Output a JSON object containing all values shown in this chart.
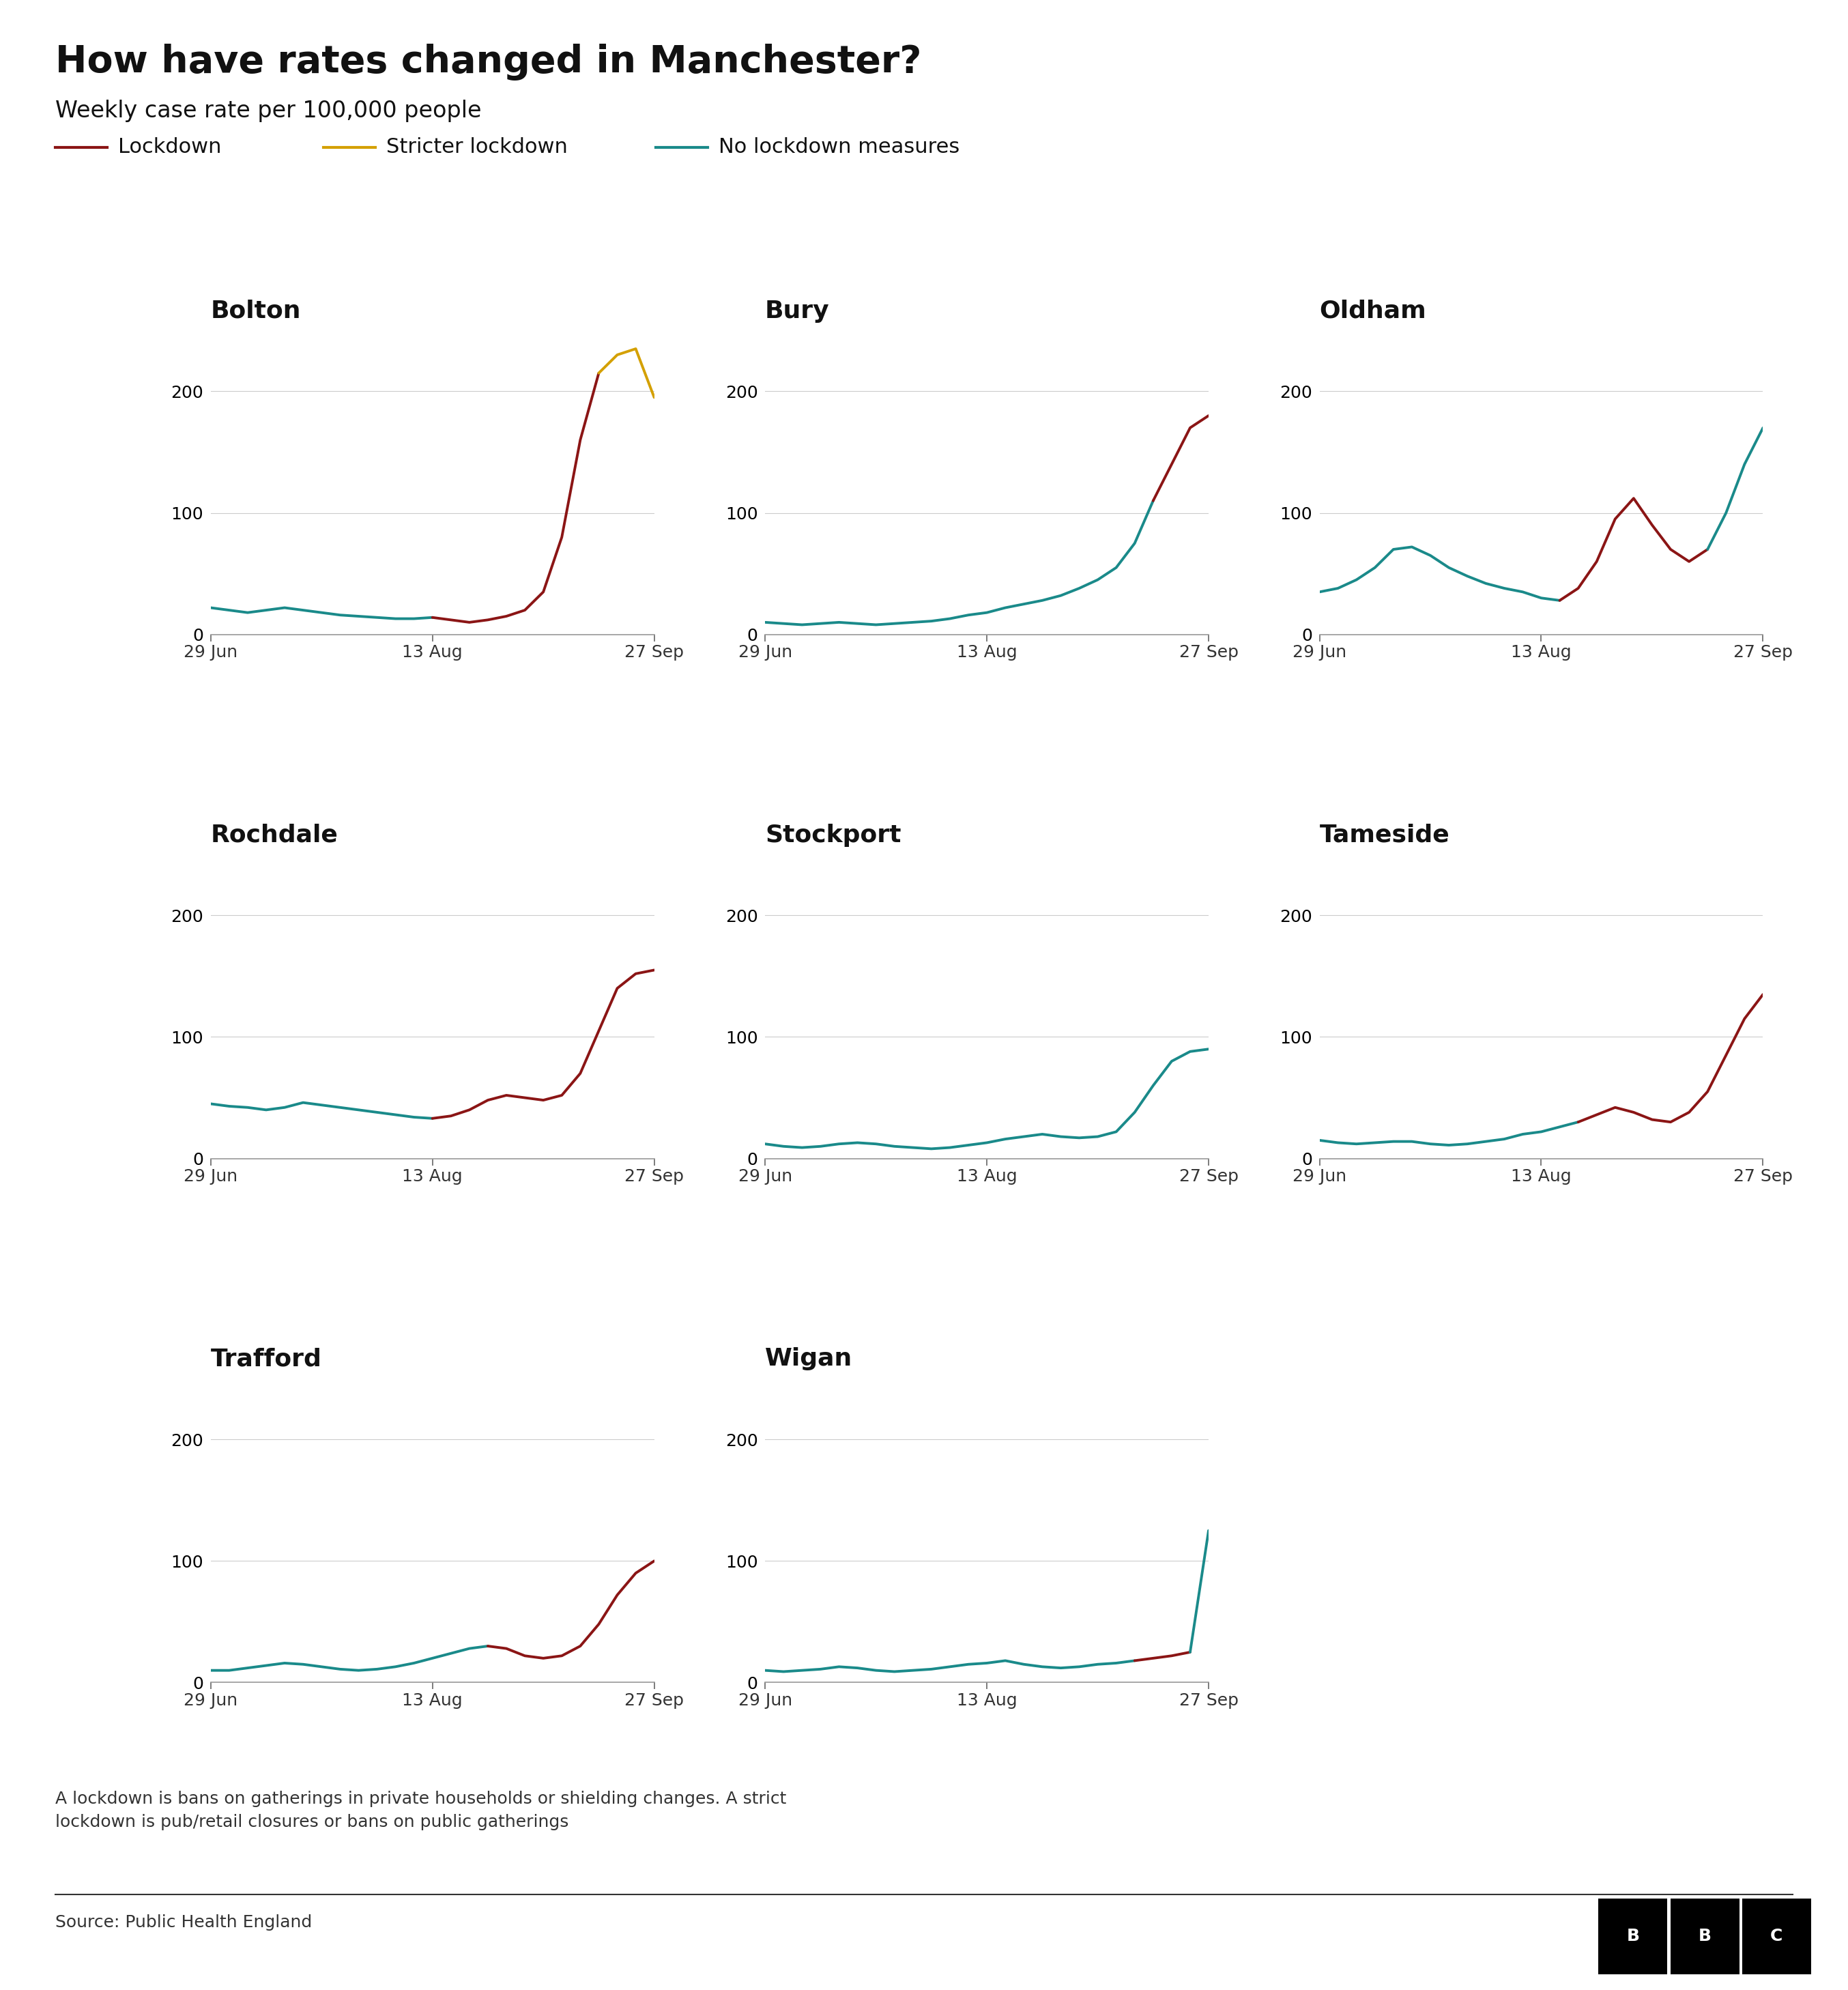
{
  "title": "How have rates changed in Manchester?",
  "subtitle": "Weekly case rate per 100,000 people",
  "footnote": "A lockdown is bans on gatherings in private households or shielding changes. A strict\nlockdown is pub/retail closures or bans on public gatherings",
  "source": "Source: Public Health England",
  "legend": [
    {
      "label": "Lockdown",
      "color": "#8B1515"
    },
    {
      "label": "Stricter lockdown",
      "color": "#D4A000"
    },
    {
      "label": "No lockdown measures",
      "color": "#1A8A8A"
    }
  ],
  "subplots": [
    {
      "title": "Bolton",
      "ylim": [
        0,
        250
      ],
      "yticks": [
        0,
        100,
        200
      ],
      "segments": [
        {
          "color": "#1A8A8A",
          "x": [
            0,
            1,
            2,
            3,
            4,
            5,
            6,
            7,
            8,
            9,
            10,
            11,
            12
          ],
          "y": [
            22,
            20,
            18,
            20,
            22,
            20,
            18,
            16,
            15,
            14,
            13,
            13,
            14
          ]
        },
        {
          "color": "#8B1515",
          "x": [
            12,
            13,
            14,
            15,
            16,
            17,
            18,
            19,
            20,
            21
          ],
          "y": [
            14,
            12,
            10,
            12,
            15,
            20,
            35,
            80,
            160,
            215
          ]
        },
        {
          "color": "#D4A000",
          "x": [
            21,
            22,
            23,
            24
          ],
          "y": [
            215,
            230,
            235,
            195
          ]
        }
      ]
    },
    {
      "title": "Bury",
      "ylim": [
        0,
        250
      ],
      "yticks": [
        0,
        100,
        200
      ],
      "segments": [
        {
          "color": "#1A8A8A",
          "x": [
            0,
            1,
            2,
            3,
            4,
            5,
            6,
            7,
            8,
            9,
            10,
            11,
            12,
            13,
            14,
            15,
            16,
            17,
            18,
            19,
            20,
            21
          ],
          "y": [
            10,
            9,
            8,
            9,
            10,
            9,
            8,
            9,
            10,
            11,
            13,
            16,
            18,
            22,
            25,
            28,
            32,
            38,
            45,
            55,
            75,
            110
          ]
        },
        {
          "color": "#8B1515",
          "x": [
            21,
            22,
            23,
            24
          ],
          "y": [
            110,
            140,
            170,
            180
          ]
        }
      ]
    },
    {
      "title": "Oldham",
      "ylim": [
        0,
        250
      ],
      "yticks": [
        0,
        100,
        200
      ],
      "segments": [
        {
          "color": "#1A8A8A",
          "x": [
            0,
            1,
            2,
            3,
            4,
            5,
            6,
            7,
            8,
            9,
            10,
            11,
            12,
            13
          ],
          "y": [
            35,
            38,
            45,
            55,
            70,
            72,
            65,
            55,
            48,
            42,
            38,
            35,
            30,
            28
          ]
        },
        {
          "color": "#8B1515",
          "x": [
            13,
            14,
            15,
            16,
            17,
            18,
            19,
            20,
            21
          ],
          "y": [
            28,
            38,
            60,
            95,
            112,
            90,
            70,
            60,
            70
          ]
        },
        {
          "color": "#1A8A8A",
          "x": [
            21,
            22,
            23,
            24
          ],
          "y": [
            70,
            100,
            140,
            170
          ]
        }
      ]
    },
    {
      "title": "Rochdale",
      "ylim": [
        0,
        250
      ],
      "yticks": [
        0,
        100,
        200
      ],
      "segments": [
        {
          "color": "#1A8A8A",
          "x": [
            0,
            1,
            2,
            3,
            4,
            5,
            6,
            7,
            8,
            9,
            10,
            11,
            12
          ],
          "y": [
            45,
            43,
            42,
            40,
            42,
            46,
            44,
            42,
            40,
            38,
            36,
            34,
            33
          ]
        },
        {
          "color": "#8B1515",
          "x": [
            12,
            13,
            14,
            15,
            16,
            17,
            18,
            19,
            20,
            21,
            22,
            23,
            24
          ],
          "y": [
            33,
            35,
            40,
            48,
            52,
            50,
            48,
            52,
            70,
            105,
            140,
            152,
            155
          ]
        }
      ]
    },
    {
      "title": "Stockport",
      "ylim": [
        0,
        250
      ],
      "yticks": [
        0,
        100,
        200
      ],
      "segments": [
        {
          "color": "#1A8A8A",
          "x": [
            0,
            1,
            2,
            3,
            4,
            5,
            6,
            7,
            8,
            9,
            10,
            11,
            12,
            13,
            14,
            15,
            16,
            17,
            18,
            19,
            20,
            21,
            22,
            23,
            24
          ],
          "y": [
            12,
            10,
            9,
            10,
            12,
            13,
            12,
            10,
            9,
            8,
            9,
            11,
            13,
            16,
            18,
            20,
            18,
            17,
            18,
            22,
            38,
            60,
            80,
            88,
            90
          ]
        }
      ]
    },
    {
      "title": "Tameside",
      "ylim": [
        0,
        250
      ],
      "yticks": [
        0,
        100,
        200
      ],
      "segments": [
        {
          "color": "#1A8A8A",
          "x": [
            0,
            1,
            2,
            3,
            4,
            5,
            6,
            7,
            8,
            9,
            10,
            11,
            12,
            13,
            14
          ],
          "y": [
            15,
            13,
            12,
            13,
            14,
            14,
            12,
            11,
            12,
            14,
            16,
            20,
            22,
            26,
            30
          ]
        },
        {
          "color": "#8B1515",
          "x": [
            14,
            15,
            16,
            17,
            18,
            19,
            20,
            21,
            22,
            23,
            24
          ],
          "y": [
            30,
            36,
            42,
            38,
            32,
            30,
            38,
            55,
            85,
            115,
            135
          ]
        }
      ]
    },
    {
      "title": "Trafford",
      "ylim": [
        0,
        250
      ],
      "yticks": [
        0,
        100,
        200
      ],
      "segments": [
        {
          "color": "#1A8A8A",
          "x": [
            0,
            1,
            2,
            3,
            4,
            5,
            6,
            7,
            8,
            9,
            10,
            11,
            12,
            13,
            14,
            15
          ],
          "y": [
            10,
            10,
            12,
            14,
            16,
            15,
            13,
            11,
            10,
            11,
            13,
            16,
            20,
            24,
            28,
            30
          ]
        },
        {
          "color": "#8B1515",
          "x": [
            15,
            16,
            17,
            18,
            19,
            20,
            21,
            22,
            23,
            24
          ],
          "y": [
            30,
            28,
            22,
            20,
            22,
            30,
            48,
            72,
            90,
            100
          ]
        }
      ]
    },
    {
      "title": "Wigan",
      "ylim": [
        0,
        250
      ],
      "yticks": [
        0,
        100,
        200
      ],
      "segments": [
        {
          "color": "#1A8A8A",
          "x": [
            0,
            1,
            2,
            3,
            4,
            5,
            6,
            7,
            8,
            9,
            10,
            11,
            12,
            13,
            14,
            15,
            16,
            17,
            18,
            19,
            20
          ],
          "y": [
            10,
            9,
            10,
            11,
            13,
            12,
            10,
            9,
            10,
            11,
            13,
            15,
            16,
            18,
            15,
            13,
            12,
            13,
            15,
            16,
            18
          ]
        },
        {
          "color": "#8B1515",
          "x": [
            20,
            21,
            22,
            23
          ],
          "y": [
            18,
            20,
            22,
            25
          ]
        },
        {
          "color": "#1A8A8A",
          "x": [
            23,
            24
          ],
          "y": [
            25,
            125
          ]
        }
      ]
    }
  ],
  "background_color": "#ffffff",
  "line_color": "#333333",
  "line_width": 2.8,
  "title_fontsize": 40,
  "subtitle_fontsize": 24,
  "legend_fontsize": 22,
  "subplot_title_fontsize": 26,
  "tick_fontsize": 18,
  "footnote_fontsize": 18,
  "source_fontsize": 18
}
